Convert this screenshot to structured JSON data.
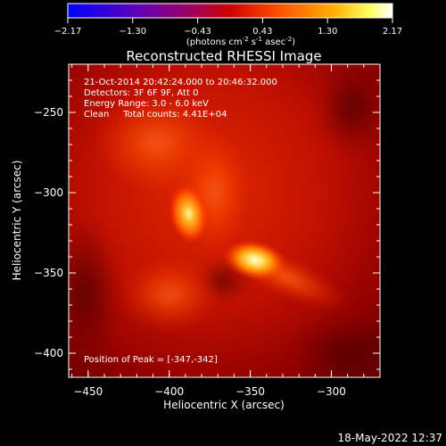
{
  "colorbar": {
    "ticks": [
      "-2.17",
      "-1.30",
      "-0.43",
      "0.43",
      "1.30",
      "2.17"
    ],
    "unit_main": "(photons cm",
    "unit_exp1": "-2",
    "unit_mid1": " s",
    "unit_exp2": "-1",
    "unit_mid2": " asec",
    "unit_exp3": "-2",
    "unit_end": ")",
    "colors": [
      "#0000ff",
      "#6a00a8",
      "#b0002a",
      "#e02000",
      "#ff6a00",
      "#ffc000",
      "#ffff80",
      "#ffffff"
    ]
  },
  "title": "Reconstructed RHESSI Image",
  "annotation": {
    "time": "21-Oct-2014 20:42:24.000 to 20:46:32.000",
    "detectors": "Detectors: 3F 6F 9F, Att 0",
    "energy": "Energy Range: 3.0 - 6.0 keV",
    "clean": "Clean     Total counts: 4.41E+04",
    "peak": "Position of Peak = [-347,-342]"
  },
  "timestamp": "18-May-2022 12:37",
  "chart_data": {
    "type": "heatmap",
    "xlabel": "Heliocentric X (arcsec)",
    "ylabel": "Heliocentric Y (arcsec)",
    "xlim": [
      -462,
      -270
    ],
    "ylim": [
      -415,
      -220
    ],
    "x_ticks": [
      -450,
      -400,
      -350,
      -300
    ],
    "y_ticks": [
      -250,
      -300,
      -350,
      -400
    ],
    "x_tick_labels": [
      "−450",
      "−400",
      "−350",
      "−300"
    ],
    "y_tick_labels": [
      "−250",
      "−300",
      "−350",
      "−400"
    ],
    "sources": [
      {
        "name": "peak-source",
        "x": -347,
        "y": -342
      },
      {
        "name": "secondary-source",
        "x": -388,
        "y": -313
      }
    ]
  }
}
